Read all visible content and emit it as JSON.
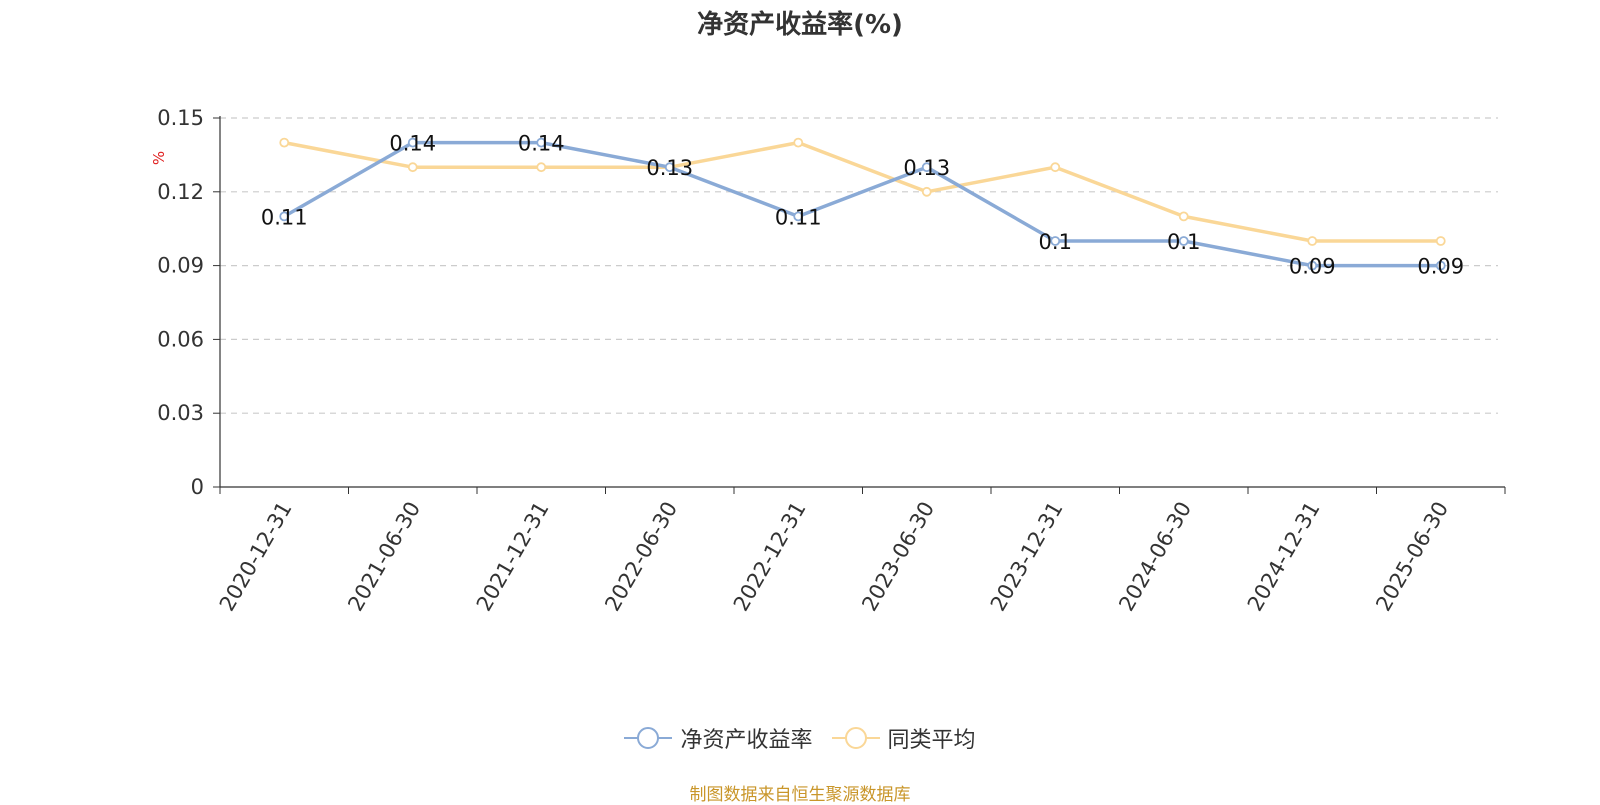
{
  "chart_data": {
    "type": "line",
    "title": "净资产收益率(%)",
    "ylabel": "%",
    "categories": [
      "2020-12-31",
      "2021-06-30",
      "2021-12-31",
      "2022-06-30",
      "2022-12-31",
      "2023-06-30",
      "2023-12-31",
      "2024-06-30",
      "2024-12-31",
      "2025-06-30"
    ],
    "y_ticks": [
      "0",
      "0.03",
      "0.06",
      "0.09",
      "0.12",
      "0.15"
    ],
    "ylim": [
      0,
      0.15
    ],
    "grid": true,
    "legend_position": "bottom",
    "series": [
      {
        "name": "净资产收益率",
        "color": "#8aaad6",
        "values": [
          0.11,
          0.14,
          0.14,
          0.13,
          0.11,
          0.13,
          0.1,
          0.1,
          0.09,
          0.09
        ],
        "labels": [
          "0.11",
          "0.14",
          "0.14",
          "0.13",
          "0.11",
          "0.13",
          "0.1",
          "0.1",
          "0.09",
          "0.09"
        ]
      },
      {
        "name": "同类平均",
        "color": "#fad797",
        "values": [
          0.14,
          0.13,
          0.13,
          0.13,
          0.14,
          0.12,
          0.13,
          0.11,
          0.1,
          0.1
        ]
      }
    ],
    "source_note": "制图数据来自恒生聚源数据库"
  }
}
